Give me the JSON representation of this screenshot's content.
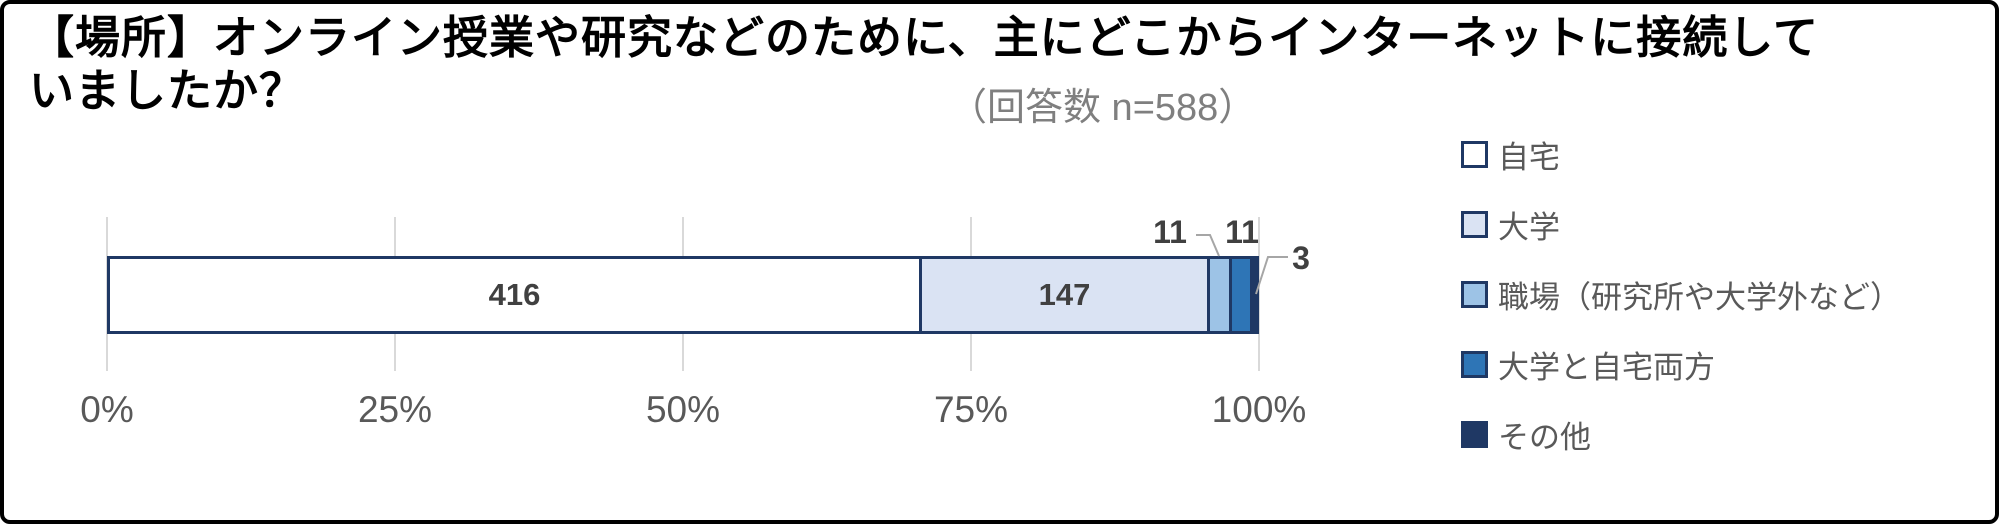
{
  "title": "【場所】オンライン授業や研究などのために、主にどこからインターネットに接続して\nいましたか？",
  "subtitle": "（回答数 n=588）",
  "chart_data": {
    "type": "bar",
    "orientation": "horizontal-stacked",
    "total_responses": 588,
    "title": "【場所】オンライン授業や研究などのために、主にどこからインターネットに接続していましたか？",
    "subtitle": "（回答数 n=588）",
    "series": [
      {
        "name": "自宅",
        "value": 416,
        "color": "#ffffff",
        "label_position": "inside"
      },
      {
        "name": "大学",
        "value": 147,
        "color": "#dae3f3",
        "label_position": "inside"
      },
      {
        "name": "職場（研究所や大学外など）",
        "value": 11,
        "color": "#9dc3e6",
        "label_position": "outside"
      },
      {
        "name": "大学と自宅両方",
        "value": 11,
        "color": "#2e75b6",
        "label_position": "outside"
      },
      {
        "name": "その他",
        "value": 3,
        "color": "#1f3864",
        "label_position": "outside"
      }
    ],
    "x_axis": {
      "range_percent": [
        0,
        100
      ],
      "ticks": [
        "0%",
        "25%",
        "50%",
        "75%",
        "100%"
      ]
    },
    "bar_border_color": "#1f3864",
    "gridline_color": "#d9d9d9",
    "legend_position": "right",
    "grid": true
  }
}
